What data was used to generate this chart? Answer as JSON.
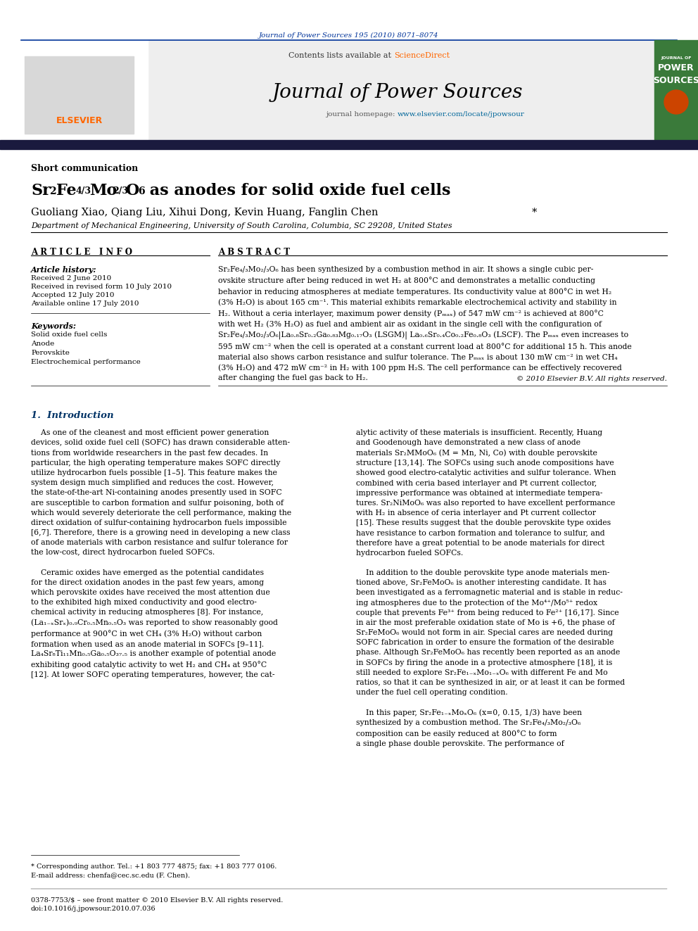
{
  "journal_citation": "Journal of Power Sources 195 (2010) 8071–8074",
  "header_text": "Contents lists available at ScienceDirect",
  "journal_name": "Journal of Power Sources",
  "journal_homepage": "journal homepage: www.elsevier.com/locate/jpowsour",
  "section_type": "Short communication",
  "article_title": "Sr₂Fe₄/₃Mo₂/₃O₆ as anodes for solid oxide fuel cells",
  "authors": "Guoliang Xiao, Qiang Liu, Xihui Dong, Kevin Huang, Fanglin Chen*",
  "affiliation": "Department of Mechanical Engineering, University of South Carolina, Columbia, SC 29208, United States",
  "article_info_title": "A R T I C L E   I N F O",
  "abstract_title": "A B S T R A C T",
  "article_history_label": "Article history:",
  "received": "Received 2 June 2010",
  "received_revised": "Received in revised form 10 July 2010",
  "accepted": "Accepted 12 July 2010",
  "available": "Available online 17 July 2010",
  "keywords_label": "Keywords:",
  "keywords": [
    "Solid oxide fuel cells",
    "Anode",
    "Perovskite",
    "Electrochemical performance"
  ],
  "copyright": "© 2010 Elsevier B.V. All rights reserved.",
  "intro_title": "1.  Introduction",
  "footnote_star": "* Corresponding author. Tel.: +1 803 777 4875; fax: +1 803 777 0106.",
  "footnote_email": "E-mail address: chenfa@cec.sc.edu (F. Chen).",
  "footer_issn": "0378-7753/$ – see front matter © 2010 Elsevier B.V. All rights reserved.",
  "footer_doi": "doi:10.1016/j.jpowsour.2010.07.036",
  "bg_color": "#ffffff",
  "link_color": "#006699",
  "sciencedirect_color": "#ff6600",
  "intro_color": "#003366"
}
